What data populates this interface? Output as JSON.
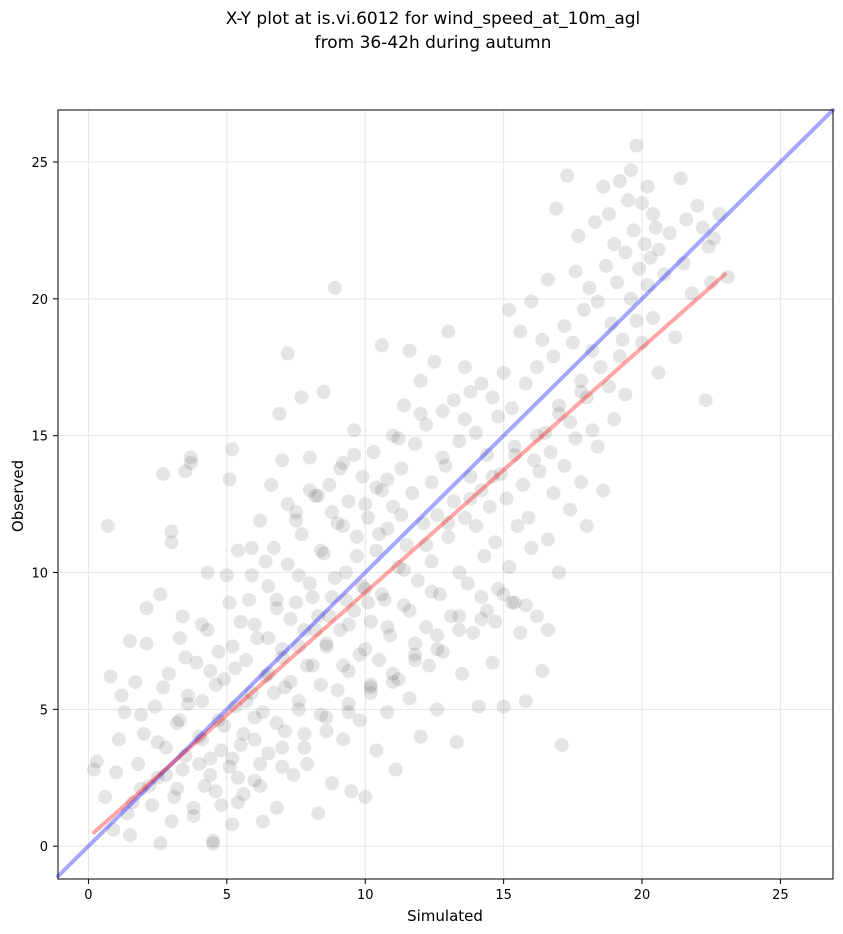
{
  "chart_data": {
    "type": "scatter",
    "title_line1": "X-Y plot at is.vi.6012 for wind_speed_at_10m_agl",
    "title_line2": "from 36-42h during autumn",
    "xlabel": "Simulated",
    "ylabel": "Observed",
    "xlim": [
      -1.1,
      26.9
    ],
    "ylim": [
      -1.2,
      26.9
    ],
    "xticks": [
      0,
      5,
      10,
      15,
      20,
      25
    ],
    "yticks": [
      0,
      5,
      10,
      15,
      20,
      25
    ],
    "grid": true,
    "point_color": "#000000",
    "point_opacity": 0.1,
    "identity_line": {
      "color": "#0000ff",
      "opacity": 0.35,
      "x": [
        -1.1,
        26.9
      ],
      "y": [
        -1.1,
        26.9
      ]
    },
    "fit_line": {
      "color": "#ff0000",
      "opacity": 0.35,
      "x": [
        0.2,
        23.0
      ],
      "y": [
        0.5,
        20.9
      ]
    },
    "points": [
      [
        0.2,
        2.8
      ],
      [
        0.3,
        3.1
      ],
      [
        0.6,
        1.8
      ],
      [
        0.7,
        11.7
      ],
      [
        0.8,
        6.2
      ],
      [
        0.9,
        0.6
      ],
      [
        1.0,
        2.7
      ],
      [
        1.1,
        3.9
      ],
      [
        1.2,
        5.5
      ],
      [
        1.3,
        4.9
      ],
      [
        1.4,
        1.2
      ],
      [
        1.5,
        7.5
      ],
      [
        1.5,
        0.4
      ],
      [
        1.7,
        6.0
      ],
      [
        1.8,
        3.0
      ],
      [
        1.9,
        2.1
      ],
      [
        2.0,
        4.1
      ],
      [
        2.1,
        7.4
      ],
      [
        2.1,
        8.7
      ],
      [
        2.3,
        1.5
      ],
      [
        2.4,
        5.1
      ],
      [
        2.5,
        2.5
      ],
      [
        2.6,
        0.1
      ],
      [
        2.6,
        9.2
      ],
      [
        2.7,
        13.6
      ],
      [
        2.8,
        3.6
      ],
      [
        2.9,
        6.3
      ],
      [
        3.0,
        11.1
      ],
      [
        3.0,
        11.5
      ],
      [
        3.1,
        1.8
      ],
      [
        3.2,
        4.5
      ],
      [
        3.3,
        7.6
      ],
      [
        3.4,
        2.8
      ],
      [
        3.4,
        8.4
      ],
      [
        3.5,
        13.7
      ],
      [
        3.6,
        5.2
      ],
      [
        3.7,
        14.2
      ],
      [
        3.7,
        14.0
      ],
      [
        3.8,
        1.1
      ],
      [
        3.9,
        6.7
      ],
      [
        4.0,
        4.0
      ],
      [
        4.1,
        8.1
      ],
      [
        4.2,
        2.2
      ],
      [
        4.3,
        10.0
      ],
      [
        4.4,
        3.2
      ],
      [
        4.5,
        0.2
      ],
      [
        4.5,
        0.1
      ],
      [
        4.6,
        5.9
      ],
      [
        4.7,
        7.1
      ],
      [
        4.8,
        1.5
      ],
      [
        4.9,
        4.4
      ],
      [
        5.0,
        9.9
      ],
      [
        5.1,
        13.4
      ],
      [
        5.1,
        2.9
      ],
      [
        5.2,
        14.5
      ],
      [
        5.2,
        0.8
      ],
      [
        5.3,
        6.5
      ],
      [
        5.4,
        10.8
      ],
      [
        5.5,
        3.7
      ],
      [
        5.5,
        8.2
      ],
      [
        5.6,
        1.9
      ],
      [
        5.7,
        5.3
      ],
      [
        5.8,
        9.0
      ],
      [
        5.9,
        10.9
      ],
      [
        6.0,
        4.7
      ],
      [
        6.0,
        2.4
      ],
      [
        6.1,
        7.6
      ],
      [
        6.2,
        11.9
      ],
      [
        6.3,
        0.9
      ],
      [
        6.4,
        6.2
      ],
      [
        6.5,
        3.4
      ],
      [
        6.5,
        9.5
      ],
      [
        6.6,
        13.2
      ],
      [
        6.7,
        5.6
      ],
      [
        6.8,
        8.7
      ],
      [
        6.8,
        1.4
      ],
      [
        6.9,
        15.8
      ],
      [
        7.0,
        7.2
      ],
      [
        7.0,
        14.1
      ],
      [
        7.1,
        4.2
      ],
      [
        7.2,
        10.3
      ],
      [
        7.2,
        18.0
      ],
      [
        7.3,
        6.0
      ],
      [
        7.4,
        2.6
      ],
      [
        7.5,
        12.2
      ],
      [
        7.5,
        8.9
      ],
      [
        7.6,
        5.0
      ],
      [
        7.7,
        11.4
      ],
      [
        7.7,
        16.4
      ],
      [
        7.8,
        7.9
      ],
      [
        7.9,
        3.0
      ],
      [
        8.0,
        9.6
      ],
      [
        8.0,
        14.2
      ],
      [
        8.1,
        6.6
      ],
      [
        8.2,
        12.8
      ],
      [
        8.3,
        1.2
      ],
      [
        8.3,
        8.4
      ],
      [
        8.4,
        4.8
      ],
      [
        8.5,
        10.7
      ],
      [
        8.5,
        16.6
      ],
      [
        8.6,
        7.3
      ],
      [
        8.7,
        13.2
      ],
      [
        8.8,
        2.3
      ],
      [
        8.8,
        9.1
      ],
      [
        8.9,
        20.4
      ],
      [
        9.0,
        5.7
      ],
      [
        9.0,
        11.8
      ],
      [
        9.1,
        7.9
      ],
      [
        9.2,
        3.9
      ],
      [
        9.2,
        14.0
      ],
      [
        9.3,
        10.0
      ],
      [
        9.4,
        6.4
      ],
      [
        9.4,
        12.6
      ],
      [
        9.5,
        2.0
      ],
      [
        9.6,
        8.6
      ],
      [
        9.6,
        15.2
      ],
      [
        9.7,
        11.3
      ],
      [
        9.8,
        4.6
      ],
      [
        9.8,
        7.0
      ],
      [
        9.9,
        13.5
      ],
      [
        10.0,
        9.4
      ],
      [
        10.0,
        1.8
      ],
      [
        10.1,
        12.0
      ],
      [
        10.2,
        5.9
      ],
      [
        10.2,
        8.2
      ],
      [
        10.3,
        14.4
      ],
      [
        10.4,
        10.8
      ],
      [
        10.4,
        3.5
      ],
      [
        10.5,
        6.8
      ],
      [
        10.6,
        13.0
      ],
      [
        10.6,
        18.3
      ],
      [
        10.7,
        9.0
      ],
      [
        10.8,
        11.6
      ],
      [
        10.8,
        4.9
      ],
      [
        10.9,
        7.7
      ],
      [
        11.0,
        15.0
      ],
      [
        11.0,
        12.4
      ],
      [
        11.1,
        2.8
      ],
      [
        11.2,
        10.2
      ],
      [
        11.2,
        6.1
      ],
      [
        11.3,
        13.8
      ],
      [
        11.4,
        8.8
      ],
      [
        11.4,
        16.1
      ],
      [
        11.5,
        11.0
      ],
      [
        11.6,
        5.4
      ],
      [
        11.6,
        18.1
      ],
      [
        11.7,
        12.9
      ],
      [
        11.8,
        7.4
      ],
      [
        11.8,
        14.7
      ],
      [
        11.9,
        9.7
      ],
      [
        12.0,
        17.0
      ],
      [
        12.0,
        4.0
      ],
      [
        12.1,
        11.8
      ],
      [
        12.2,
        8.0
      ],
      [
        12.2,
        15.4
      ],
      [
        12.3,
        6.6
      ],
      [
        12.4,
        13.3
      ],
      [
        12.4,
        10.4
      ],
      [
        12.5,
        17.7
      ],
      [
        12.6,
        5.0
      ],
      [
        12.6,
        12.1
      ],
      [
        12.7,
        9.2
      ],
      [
        12.8,
        15.9
      ],
      [
        12.8,
        7.1
      ],
      [
        12.9,
        13.9
      ],
      [
        13.0,
        11.3
      ],
      [
        13.0,
        18.8
      ],
      [
        13.1,
        8.4
      ],
      [
        13.2,
        16.3
      ],
      [
        13.2,
        12.6
      ],
      [
        13.3,
        3.8
      ],
      [
        13.4,
        10.0
      ],
      [
        13.4,
        14.8
      ],
      [
        13.5,
        6.3
      ],
      [
        13.6,
        17.5
      ],
      [
        13.6,
        12.0
      ],
      [
        13.7,
        9.6
      ],
      [
        13.8,
        16.6
      ],
      [
        13.8,
        13.5
      ],
      [
        13.9,
        7.8
      ],
      [
        14.0,
        15.1
      ],
      [
        14.0,
        11.7
      ],
      [
        14.1,
        5.1
      ],
      [
        14.2,
        13.0
      ],
      [
        14.2,
        16.9
      ],
      [
        14.3,
        10.6
      ],
      [
        14.4,
        8.6
      ],
      [
        14.4,
        14.3
      ],
      [
        14.5,
        12.4
      ],
      [
        14.6,
        6.7
      ],
      [
        14.6,
        16.4
      ],
      [
        14.7,
        11.1
      ],
      [
        14.8,
        15.7
      ],
      [
        14.8,
        9.4
      ],
      [
        14.9,
        13.6
      ],
      [
        15.0,
        5.1
      ],
      [
        15.0,
        17.3
      ],
      [
        15.1,
        12.7
      ],
      [
        15.2,
        19.6
      ],
      [
        15.2,
        10.2
      ],
      [
        15.3,
        16.0
      ],
      [
        15.4,
        8.9
      ],
      [
        15.4,
        14.6
      ],
      [
        15.5,
        11.7
      ],
      [
        15.6,
        7.8
      ],
      [
        15.6,
        18.8
      ],
      [
        15.7,
        13.2
      ],
      [
        15.8,
        5.3
      ],
      [
        15.8,
        16.9
      ],
      [
        15.9,
        12.0
      ],
      [
        16.0,
        19.9
      ],
      [
        16.0,
        10.9
      ],
      [
        16.1,
        14.1
      ],
      [
        16.2,
        8.4
      ],
      [
        16.2,
        17.5
      ],
      [
        16.3,
        13.7
      ],
      [
        16.4,
        6.4
      ],
      [
        16.4,
        18.5
      ],
      [
        16.5,
        15.1
      ],
      [
        16.6,
        11.2
      ],
      [
        16.6,
        20.7
      ],
      [
        16.7,
        14.4
      ],
      [
        16.8,
        17.9
      ],
      [
        16.8,
        12.9
      ],
      [
        16.9,
        23.3
      ],
      [
        17.0,
        16.1
      ],
      [
        17.0,
        10.0
      ],
      [
        17.1,
        3.7
      ],
      [
        17.2,
        19.0
      ],
      [
        17.2,
        13.9
      ],
      [
        17.3,
        24.5
      ],
      [
        17.4,
        15.5
      ],
      [
        17.4,
        12.3
      ],
      [
        17.5,
        18.4
      ],
      [
        17.6,
        21.0
      ],
      [
        17.6,
        14.9
      ],
      [
        17.7,
        22.3
      ],
      [
        17.8,
        17.0
      ],
      [
        17.8,
        13.3
      ],
      [
        17.9,
        19.6
      ],
      [
        18.0,
        16.4
      ],
      [
        18.0,
        11.7
      ],
      [
        18.1,
        20.4
      ],
      [
        18.2,
        15.2
      ],
      [
        18.2,
        18.1
      ],
      [
        18.3,
        22.8
      ],
      [
        18.4,
        14.6
      ],
      [
        18.4,
        19.9
      ],
      [
        18.5,
        17.5
      ],
      [
        18.6,
        24.1
      ],
      [
        18.6,
        13.0
      ],
      [
        18.7,
        21.2
      ],
      [
        18.8,
        16.8
      ],
      [
        18.8,
        23.1
      ],
      [
        18.9,
        19.1
      ],
      [
        19.0,
        15.6
      ],
      [
        19.0,
        22.0
      ],
      [
        19.1,
        20.6
      ],
      [
        19.2,
        17.9
      ],
      [
        19.2,
        24.3
      ],
      [
        19.3,
        18.5
      ],
      [
        19.4,
        21.7
      ],
      [
        19.4,
        16.5
      ],
      [
        19.5,
        23.6
      ],
      [
        19.6,
        20.0
      ],
      [
        19.6,
        24.7
      ],
      [
        19.7,
        22.5
      ],
      [
        19.8,
        19.2
      ],
      [
        19.8,
        25.6
      ],
      [
        19.9,
        21.1
      ],
      [
        20.0,
        23.5
      ],
      [
        20.0,
        18.4
      ],
      [
        20.1,
        22.0
      ],
      [
        20.2,
        24.1
      ],
      [
        20.2,
        20.5
      ],
      [
        20.3,
        21.5
      ],
      [
        20.4,
        23.1
      ],
      [
        20.4,
        19.3
      ],
      [
        20.5,
        22.6
      ],
      [
        20.6,
        17.3
      ],
      [
        20.6,
        21.8
      ],
      [
        20.8,
        20.9
      ],
      [
        21.0,
        22.4
      ],
      [
        21.2,
        18.6
      ],
      [
        21.4,
        24.4
      ],
      [
        21.5,
        21.3
      ],
      [
        21.6,
        22.9
      ],
      [
        21.8,
        20.2
      ],
      [
        22.0,
        23.4
      ],
      [
        22.2,
        22.6
      ],
      [
        22.3,
        16.3
      ],
      [
        22.4,
        21.9
      ],
      [
        22.5,
        20.6
      ],
      [
        22.6,
        22.2
      ],
      [
        22.8,
        23.1
      ],
      [
        23.1,
        20.8
      ],
      [
        1.6,
        1.6
      ],
      [
        2.2,
        2.2
      ],
      [
        2.8,
        2.6
      ],
      [
        3.5,
        3.3
      ],
      [
        4.1,
        3.9
      ],
      [
        4.7,
        4.6
      ],
      [
        5.3,
        5.1
      ],
      [
        5.9,
        5.6
      ],
      [
        6.5,
        6.3
      ],
      [
        7.0,
        6.9
      ],
      [
        7.6,
        7.3
      ],
      [
        8.2,
        7.9
      ],
      [
        8.7,
        8.4
      ],
      [
        9.3,
        9.0
      ],
      [
        9.9,
        9.5
      ],
      [
        3.2,
        2.1
      ],
      [
        4.0,
        3.0
      ],
      [
        4.8,
        3.5
      ],
      [
        5.6,
        4.1
      ],
      [
        6.3,
        4.9
      ],
      [
        7.1,
        5.8
      ],
      [
        7.9,
        6.6
      ],
      [
        8.6,
        7.4
      ],
      [
        9.4,
        8.1
      ],
      [
        10.1,
        8.9
      ],
      [
        2.5,
        3.8
      ],
      [
        3.3,
        4.6
      ],
      [
        4.1,
        5.3
      ],
      [
        4.9,
        6.1
      ],
      [
        5.7,
        6.8
      ],
      [
        6.5,
        7.6
      ],
      [
        7.3,
        8.3
      ],
      [
        8.1,
        9.1
      ],
      [
        8.9,
        9.8
      ],
      [
        9.7,
        10.6
      ],
      [
        10.5,
        11.4
      ],
      [
        11.3,
        12.1
      ],
      [
        4.4,
        2.6
      ],
      [
        5.2,
        3.2
      ],
      [
        6.0,
        3.9
      ],
      [
        6.8,
        4.5
      ],
      [
        7.6,
        5.3
      ],
      [
        8.4,
        5.9
      ],
      [
        9.2,
        6.6
      ],
      [
        10.0,
        7.2
      ],
      [
        10.8,
        8.0
      ],
      [
        11.6,
        8.6
      ],
      [
        12.4,
        9.3
      ],
      [
        3.6,
        5.5
      ],
      [
        4.4,
        6.4
      ],
      [
        5.2,
        7.3
      ],
      [
        6.0,
        8.1
      ],
      [
        6.8,
        9.0
      ],
      [
        7.6,
        9.9
      ],
      [
        8.4,
        10.8
      ],
      [
        9.2,
        11.7
      ],
      [
        10.0,
        12.5
      ],
      [
        10.8,
        13.4
      ],
      [
        5.4,
        1.6
      ],
      [
        6.2,
        2.2
      ],
      [
        7.0,
        2.9
      ],
      [
        7.8,
        3.6
      ],
      [
        8.6,
        4.2
      ],
      [
        9.4,
        4.9
      ],
      [
        10.2,
        5.6
      ],
      [
        11.0,
        6.3
      ],
      [
        11.8,
        7.0
      ],
      [
        12.6,
        7.7
      ],
      [
        13.4,
        8.4
      ],
      [
        14.2,
        9.1
      ],
      [
        1.9,
        4.8
      ],
      [
        2.7,
        5.8
      ],
      [
        3.5,
        6.9
      ],
      [
        4.3,
        7.9
      ],
      [
        5.1,
        8.9
      ],
      [
        5.9,
        9.9
      ],
      [
        6.7,
        10.9
      ],
      [
        7.5,
        11.9
      ],
      [
        8.3,
        12.8
      ],
      [
        9.1,
        13.8
      ],
      [
        6.4,
        10.4
      ],
      [
        7.2,
        12.5
      ],
      [
        8.0,
        13.0
      ],
      [
        8.8,
        12.2
      ],
      [
        9.6,
        14.3
      ],
      [
        10.4,
        13.1
      ],
      [
        11.2,
        14.9
      ],
      [
        12.0,
        15.8
      ],
      [
        12.8,
        14.2
      ],
      [
        13.6,
        15.6
      ],
      [
        10.6,
        9.2
      ],
      [
        11.4,
        10.1
      ],
      [
        12.2,
        11.0
      ],
      [
        13.0,
        11.8
      ],
      [
        13.8,
        12.7
      ],
      [
        14.6,
        13.5
      ],
      [
        15.4,
        14.3
      ],
      [
        16.2,
        15.0
      ],
      [
        17.0,
        15.8
      ],
      [
        17.8,
        16.6
      ],
      [
        3.0,
        0.9
      ],
      [
        3.8,
        1.4
      ],
      [
        4.6,
        2.0
      ],
      [
        5.4,
        2.5
      ],
      [
        6.2,
        3.0
      ],
      [
        7.0,
        3.6
      ],
      [
        7.8,
        4.1
      ],
      [
        8.6,
        4.7
      ],
      [
        9.4,
        5.2
      ],
      [
        10.2,
        5.8
      ],
      [
        11.0,
        6.0
      ],
      [
        11.8,
        6.8
      ],
      [
        12.6,
        7.2
      ],
      [
        13.4,
        7.9
      ],
      [
        14.2,
        8.3
      ],
      [
        15.0,
        9.2
      ],
      [
        15.8,
        8.8
      ],
      [
        16.6,
        7.9
      ],
      [
        15.3,
        8.9
      ],
      [
        14.7,
        8.2
      ]
    ]
  }
}
